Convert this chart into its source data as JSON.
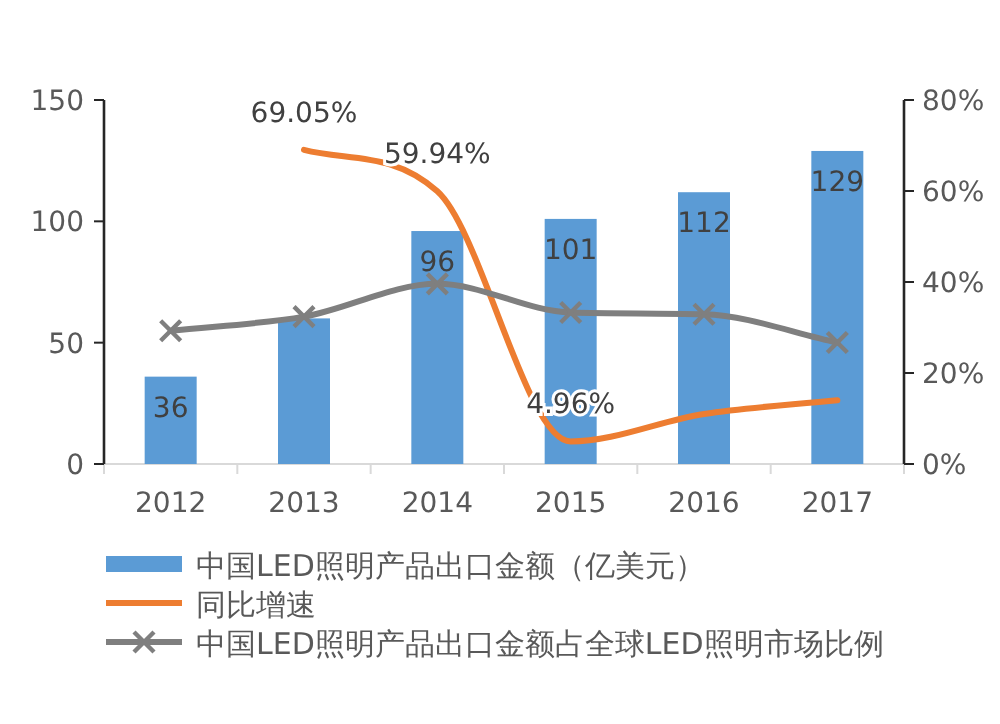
{
  "chart_data": {
    "type": "bar",
    "categories": [
      "2012",
      "2013",
      "2014",
      "2015",
      "2016",
      "2017"
    ],
    "series": [
      {
        "name": "中国LED照明产品出口金额（亿美元）",
        "color": "#5b9bd5",
        "values": [
          36,
          60,
          96,
          101,
          112,
          129
        ],
        "value_labels": [
          "36",
          null,
          "96",
          "101",
          "112",
          "129"
        ]
      },
      {
        "name": "同比增速",
        "type": "line",
        "axis": "y2",
        "color": "#ed7d31",
        "marker": "none",
        "values": [
          null,
          69.05,
          59.94,
          4.96,
          11,
          14
        ],
        "value_labels": [
          null,
          "69.05%",
          "59.94%",
          "4.96%",
          null,
          null
        ]
      },
      {
        "name": "中国LED照明产品出口金额占全球LED照明市场比例",
        "type": "line",
        "axis": "y2",
        "color": "#7f7f7f",
        "marker": "cross",
        "values": [
          29.3,
          32.4,
          39.6,
          33.3,
          32.9,
          26.7
        ]
      }
    ],
    "ylim": [
      0,
      150
    ],
    "yticks": [
      0,
      50,
      100,
      150
    ],
    "y2lim": [
      0,
      80
    ],
    "y2ticks": [
      {
        "value": 0,
        "label": "0%"
      },
      {
        "value": 20,
        "label": "20%"
      },
      {
        "value": 40,
        "label": "40%"
      },
      {
        "value": 60,
        "label": "60%"
      },
      {
        "value": 80,
        "label": "80%"
      }
    ],
    "grid": false,
    "legend": "bottom"
  }
}
